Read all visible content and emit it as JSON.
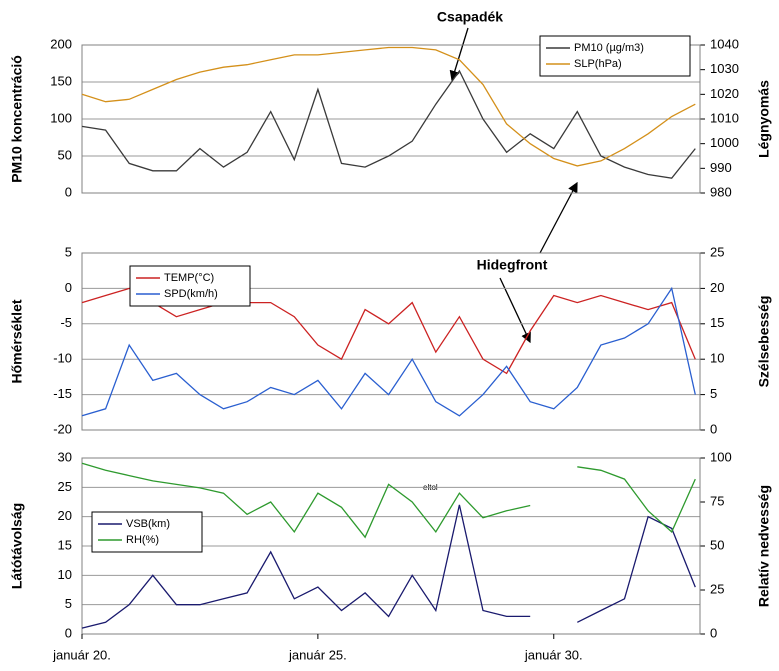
{
  "chart_data": [
    {
      "type": "line",
      "x": [
        20,
        20.5,
        21,
        21.5,
        22,
        22.5,
        23,
        23.5,
        24,
        24.5,
        25,
        25.5,
        26,
        26.5,
        27,
        27.5,
        28,
        28.5,
        29,
        29.5,
        30,
        30.5,
        31,
        31.5,
        32,
        32.5,
        33
      ],
      "xlim": [
        20,
        33.1
      ],
      "y_label": "PM10 koncentráció",
      "y2_label": "Légnyomás",
      "ylim": [
        0,
        200
      ],
      "yticks": [
        0,
        50,
        100,
        150,
        200
      ],
      "y2lim": [
        980,
        1040
      ],
      "y2ticks": [
        980,
        990,
        1000,
        1010,
        1020,
        1030,
        1040
      ],
      "grid": true,
      "legend": "upper right",
      "annotation": "Csapadék",
      "series": [
        {
          "name": "PM10 (µg/m3)",
          "color": "#3a3a3a",
          "values": [
            90,
            85,
            40,
            30,
            30,
            60,
            35,
            55,
            110,
            45,
            140,
            40,
            35,
            50,
            70,
            120,
            165,
            100,
            55,
            80,
            60,
            110,
            50,
            35,
            25,
            20,
            60
          ]
        },
        {
          "name": "SLP(hPa)",
          "color": "#d4901a",
          "axis": "y2",
          "values": [
            1020,
            1017,
            1018,
            1022,
            1026,
            1029,
            1031,
            1032,
            1034,
            1036,
            1036,
            1037,
            1038,
            1039,
            1039,
            1038,
            1034,
            1024,
            1008,
            1000,
            994,
            991,
            993,
            998,
            1004,
            1011,
            1016
          ]
        }
      ]
    },
    {
      "type": "line",
      "x": [
        20,
        20.5,
        21,
        21.5,
        22,
        22.5,
        23,
        23.5,
        24,
        24.5,
        25,
        25.5,
        26,
        26.5,
        27,
        27.5,
        28,
        28.5,
        29,
        29.5,
        30,
        30.5,
        31,
        31.5,
        32,
        32.5,
        33
      ],
      "xlim": [
        20,
        33.1
      ],
      "y_label": "Hőmérséklet",
      "y2_label": "Szélsebesség",
      "ylim": [
        -20,
        5
      ],
      "yticks": [
        -20,
        -15,
        -10,
        -5,
        0,
        5
      ],
      "y2lim": [
        0,
        25
      ],
      "y2ticks": [
        0,
        5,
        10,
        15,
        20,
        25
      ],
      "grid": true,
      "legend": "upper left",
      "annotation": "Hidegfront",
      "series": [
        {
          "name": "TEMP(°C)",
          "color": "#cc2222",
          "values": [
            -2,
            -1,
            0,
            -2,
            -4,
            -3,
            -2,
            -2,
            -2,
            -4,
            -8,
            -10,
            -3,
            -5,
            -2,
            -9,
            -4,
            -10,
            -12,
            -6,
            -1,
            -2,
            -1,
            -2,
            -3,
            -2,
            -10
          ]
        },
        {
          "name": "SPD(km/h)",
          "color": "#2a5fd0",
          "axis": "y2",
          "values": [
            2,
            3,
            12,
            7,
            8,
            5,
            3,
            4,
            6,
            5,
            7,
            3,
            8,
            5,
            10,
            4,
            2,
            5,
            9,
            4,
            3,
            6,
            12,
            13,
            15,
            20,
            5
          ]
        }
      ]
    },
    {
      "type": "line",
      "x": [
        20,
        20.5,
        21,
        21.5,
        22,
        22.5,
        23,
        23.5,
        24,
        24.5,
        25,
        25.5,
        26,
        26.5,
        27,
        27.5,
        28,
        28.5,
        29,
        29.5,
        30,
        30.5,
        31,
        31.5,
        32,
        32.5,
        33
      ],
      "xlim": [
        20,
        33.1
      ],
      "xticks": [
        {
          "value": 20,
          "label": "január 20."
        },
        {
          "value": 25,
          "label": "január 25."
        },
        {
          "value": 30,
          "label": "január 30."
        }
      ],
      "y_label": "Látótávolság",
      "y2_label": "Relatív nedvesség",
      "ylim": [
        0,
        30
      ],
      "yticks": [
        0,
        5,
        10,
        15,
        20,
        25,
        30
      ],
      "y2lim": [
        0,
        100
      ],
      "y2ticks": [
        0,
        25,
        50,
        75,
        100
      ],
      "grid": true,
      "legend": "center left",
      "annotation": "eltol",
      "series": [
        {
          "name": "VSB(km)",
          "color": "#1a1a6e",
          "values": [
            1,
            2,
            5,
            10,
            5,
            5,
            6,
            7,
            14,
            6,
            8,
            4,
            7,
            3,
            10,
            4,
            22,
            4,
            3,
            3,
            null,
            2,
            4,
            6,
            20,
            18,
            8
          ]
        },
        {
          "name": "RH(%)",
          "color": "#2e9a2e",
          "axis": "y2",
          "values": [
            97,
            93,
            90,
            87,
            85,
            83,
            80,
            68,
            75,
            58,
            80,
            72,
            55,
            85,
            75,
            58,
            80,
            66,
            70,
            73,
            null,
            95,
            93,
            88,
            70,
            58,
            88
          ]
        }
      ]
    }
  ]
}
